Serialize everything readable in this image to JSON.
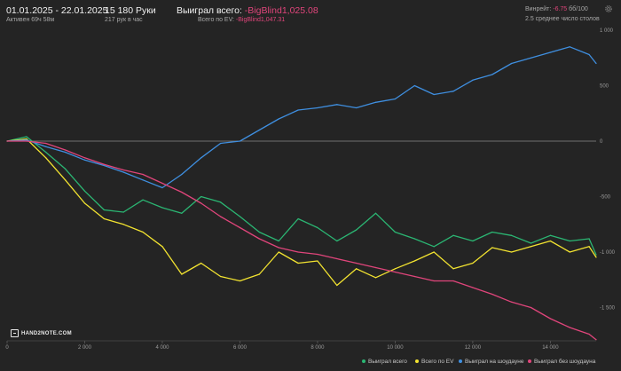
{
  "header": {
    "date_range": "01.01.2025 - 22.01.2025",
    "active": "Активен 69ч 58м",
    "hands": "15 180 Руки",
    "hands_per_hour": "217 рук в час",
    "won_label": "Выиграл всего:",
    "won_value": "-BigBlind1,025.08",
    "ev_label": "Всего по EV:",
    "ev_value": "-BigBlind1,047.31",
    "winrate_label": "Винрейт:",
    "winrate_value": "-6.75",
    "winrate_suffix": "бб/100",
    "tables": "2.5 среднее число столов",
    "settings_icon": "gear-icon"
  },
  "logo_text": "HAND2NOTE.COM",
  "colors": {
    "background": "#242424",
    "won_total": "#2bb673",
    "ev_total": "#f2e330",
    "showdown": "#3f8fe0",
    "no_showdown": "#e0457b",
    "negative_text": "#e0457b"
  },
  "chart_data": {
    "type": "line",
    "x_ticks": [
      "0",
      "2 000",
      "4 000",
      "6 000",
      "8 000",
      "10 000",
      "12 000",
      "14 000"
    ],
    "y_ticks": [
      "1 000",
      "500",
      "0",
      "-500",
      "-1 000",
      "-1 500"
    ],
    "xlim": [
      0,
      15180
    ],
    "ylim": [
      -1800,
      1000
    ],
    "grid": false,
    "legend_position": "bottom-right",
    "x": [
      0,
      500,
      1000,
      1500,
      2000,
      2500,
      3000,
      3500,
      4000,
      4500,
      5000,
      5500,
      6000,
      6500,
      7000,
      7500,
      8000,
      8500,
      9000,
      9500,
      10000,
      10500,
      11000,
      11500,
      12000,
      12500,
      13000,
      13500,
      14000,
      14500,
      15000,
      15180
    ],
    "series": [
      {
        "name": "Выиграл всего",
        "color": "#2bb673",
        "values": [
          0,
          40,
          -100,
          -250,
          -450,
          -620,
          -640,
          -530,
          -600,
          -650,
          -500,
          -550,
          -680,
          -820,
          -900,
          -700,
          -780,
          -900,
          -800,
          -650,
          -820,
          -880,
          -950,
          -850,
          -900,
          -820,
          -850,
          -920,
          -850,
          -900,
          -880,
          -1025
        ]
      },
      {
        "name": "Всего по EV",
        "color": "#f2e330",
        "values": [
          0,
          20,
          -150,
          -350,
          -560,
          -700,
          -750,
          -820,
          -950,
          -1200,
          -1100,
          -1220,
          -1260,
          -1200,
          -1000,
          -1100,
          -1080,
          -1300,
          -1150,
          -1230,
          -1150,
          -1080,
          -1000,
          -1150,
          -1100,
          -960,
          -1000,
          -950,
          -900,
          -1000,
          -950,
          -1047
        ]
      },
      {
        "name": "Выиграл на шоудауне",
        "color": "#3f8fe0",
        "values": [
          0,
          10,
          -50,
          -100,
          -170,
          -220,
          -280,
          -350,
          -420,
          -300,
          -150,
          -20,
          0,
          100,
          200,
          280,
          300,
          330,
          300,
          350,
          380,
          500,
          420,
          450,
          550,
          600,
          700,
          750,
          800,
          850,
          780,
          700
        ]
      },
      {
        "name": "Выиграл без шоудауна",
        "color": "#e0457b",
        "values": [
          0,
          0,
          -20,
          -80,
          -150,
          -210,
          -260,
          -300,
          -380,
          -460,
          -560,
          -680,
          -780,
          -880,
          -960,
          -1000,
          -1020,
          -1060,
          -1100,
          -1140,
          -1180,
          -1220,
          -1260,
          -1260,
          -1320,
          -1380,
          -1450,
          -1500,
          -1600,
          -1680,
          -1740,
          -1790
        ]
      }
    ]
  }
}
